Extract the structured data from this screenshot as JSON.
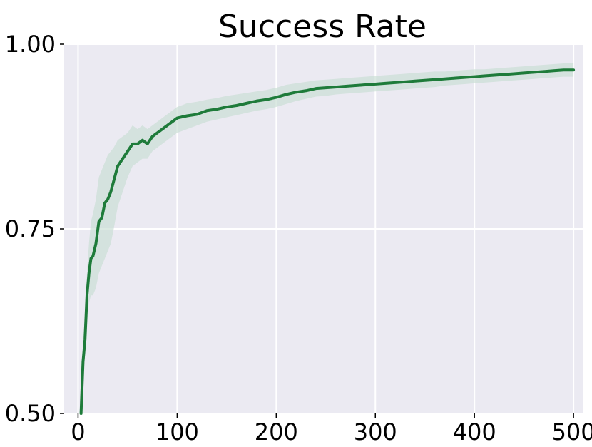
{
  "chart_data": {
    "type": "line",
    "title": "Success Rate",
    "xlabel": "",
    "ylabel": "",
    "xlim": [
      -14,
      510
    ],
    "ylim": [
      0.5,
      1.0
    ],
    "x_ticks": [
      0,
      100,
      200,
      300,
      400,
      500
    ],
    "y_ticks": [
      0.5,
      0.75,
      1.0
    ],
    "x_tick_labels": [
      "0",
      "100",
      "200",
      "300",
      "400",
      "500"
    ],
    "y_tick_labels": [
      "0.50",
      "0.75",
      "1.00"
    ],
    "grid": true,
    "legend": "none",
    "colors": {
      "plot_background": "#EBEAF2",
      "grid": "#FFFFFF",
      "line": "#1E7B3A",
      "band": "#C8DDD2"
    },
    "series": [
      {
        "x": [
          3,
          5,
          7,
          9,
          11,
          13,
          15,
          18,
          21,
          24,
          27,
          30,
          33,
          36,
          40,
          45,
          50,
          55,
          60,
          65,
          70,
          75,
          80,
          90,
          100,
          110,
          120,
          130,
          140,
          150,
          160,
          170,
          180,
          190,
          200,
          210,
          220,
          230,
          240,
          250,
          260,
          270,
          280,
          290,
          300,
          310,
          320,
          330,
          340,
          350,
          360,
          370,
          380,
          390,
          400,
          410,
          420,
          430,
          440,
          450,
          460,
          470,
          480,
          490,
          500
        ],
        "y": [
          0.5,
          0.57,
          0.6,
          0.66,
          0.69,
          0.71,
          0.713,
          0.73,
          0.76,
          0.765,
          0.785,
          0.79,
          0.8,
          0.815,
          0.835,
          0.845,
          0.855,
          0.865,
          0.865,
          0.87,
          0.865,
          0.875,
          0.88,
          0.89,
          0.9,
          0.903,
          0.905,
          0.91,
          0.912,
          0.915,
          0.917,
          0.92,
          0.923,
          0.925,
          0.928,
          0.932,
          0.935,
          0.937,
          0.94,
          0.941,
          0.942,
          0.943,
          0.944,
          0.945,
          0.946,
          0.947,
          0.948,
          0.949,
          0.95,
          0.951,
          0.952,
          0.953,
          0.954,
          0.955,
          0.956,
          0.957,
          0.958,
          0.959,
          0.96,
          0.961,
          0.962,
          0.963,
          0.964,
          0.965,
          0.965
        ],
        "lower": [
          0.49,
          0.55,
          0.58,
          0.63,
          0.65,
          0.66,
          0.66,
          0.67,
          0.69,
          0.7,
          0.71,
          0.72,
          0.73,
          0.75,
          0.78,
          0.8,
          0.82,
          0.835,
          0.84,
          0.845,
          0.845,
          0.855,
          0.86,
          0.87,
          0.88,
          0.885,
          0.89,
          0.895,
          0.898,
          0.901,
          0.904,
          0.907,
          0.91,
          0.912,
          0.915,
          0.919,
          0.923,
          0.926,
          0.929,
          0.93,
          0.932,
          0.933,
          0.934,
          0.935,
          0.936,
          0.937,
          0.938,
          0.939,
          0.94,
          0.941,
          0.942,
          0.944,
          0.945,
          0.946,
          0.947,
          0.948,
          0.949,
          0.95,
          0.951,
          0.952,
          0.953,
          0.954,
          0.955,
          0.956,
          0.956
        ],
        "upper": [
          0.52,
          0.6,
          0.63,
          0.69,
          0.73,
          0.76,
          0.77,
          0.79,
          0.82,
          0.83,
          0.84,
          0.85,
          0.855,
          0.86,
          0.87,
          0.875,
          0.88,
          0.89,
          0.885,
          0.89,
          0.885,
          0.89,
          0.895,
          0.905,
          0.915,
          0.92,
          0.922,
          0.925,
          0.927,
          0.93,
          0.932,
          0.934,
          0.936,
          0.938,
          0.941,
          0.945,
          0.947,
          0.949,
          0.951,
          0.952,
          0.953,
          0.954,
          0.955,
          0.956,
          0.957,
          0.958,
          0.959,
          0.96,
          0.961,
          0.962,
          0.963,
          0.963,
          0.964,
          0.965,
          0.966,
          0.966,
          0.967,
          0.968,
          0.969,
          0.97,
          0.971,
          0.972,
          0.973,
          0.974,
          0.974
        ]
      }
    ]
  }
}
